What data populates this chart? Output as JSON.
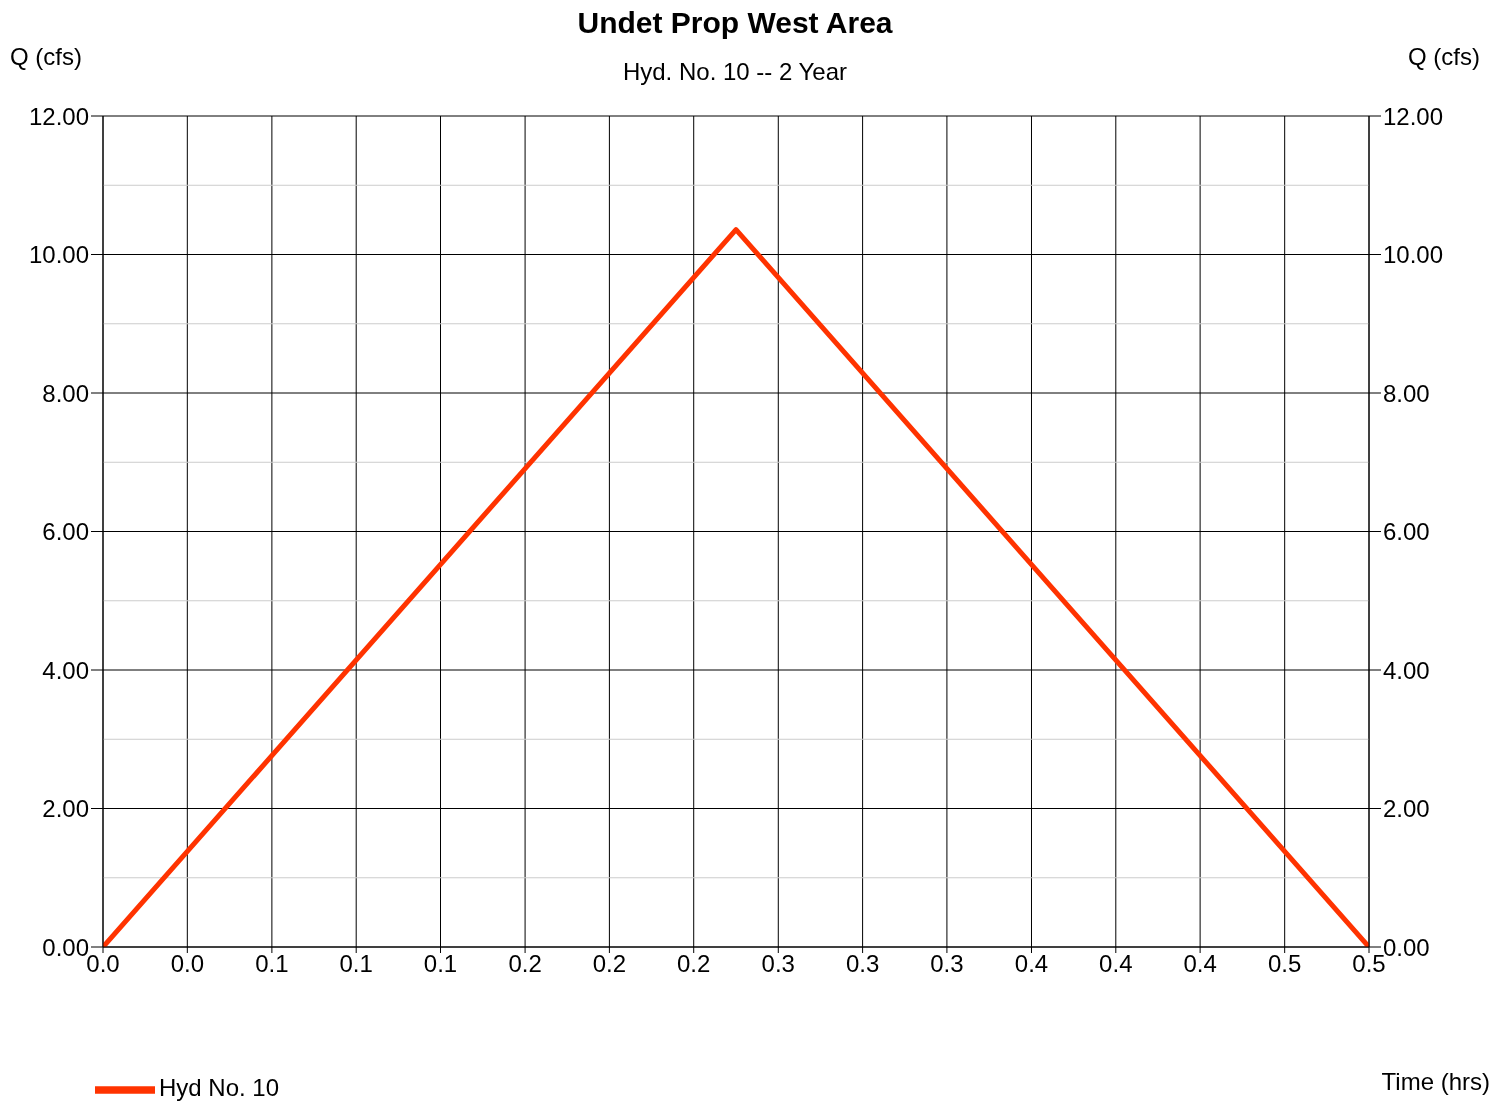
{
  "chart_data": {
    "type": "line",
    "title": "Undet Prop West Area",
    "subtitle": "Hyd. No. 10 -- 2 Year",
    "xlabel": "Time (hrs)",
    "ylabel": "Q (cfs)",
    "y2label": "Q (cfs)",
    "x": [
      0,
      0.25,
      0.5
    ],
    "series": [
      {
        "name": "Hyd No. 10",
        "color": "#ff3300",
        "values": [
          0,
          10.36,
          0
        ]
      }
    ],
    "xlim": [
      0,
      0.5
    ],
    "xticks": [
      {
        "value": 0,
        "label": "0.0"
      },
      {
        "value": 0.0333,
        "label": "0.0"
      },
      {
        "value": 0.0667,
        "label": "0.1"
      },
      {
        "value": 0.1,
        "label": "0.1"
      },
      {
        "value": 0.1333,
        "label": "0.1"
      },
      {
        "value": 0.1667,
        "label": "0.2"
      },
      {
        "value": 0.2,
        "label": "0.2"
      },
      {
        "value": 0.2333,
        "label": "0.2"
      },
      {
        "value": 0.2667,
        "label": "0.3"
      },
      {
        "value": 0.3,
        "label": "0.3"
      },
      {
        "value": 0.3333,
        "label": "0.3"
      },
      {
        "value": 0.3667,
        "label": "0.4"
      },
      {
        "value": 0.4,
        "label": "0.4"
      },
      {
        "value": 0.4333,
        "label": "0.4"
      },
      {
        "value": 0.4667,
        "label": "0.5"
      },
      {
        "value": 0.5,
        "label": "0.5"
      }
    ],
    "ylim": [
      0,
      12
    ],
    "yticks": [
      {
        "value": 0,
        "label": "0.00"
      },
      {
        "value": 1,
        "label": null
      },
      {
        "value": 2,
        "label": "2.00"
      },
      {
        "value": 3,
        "label": null
      },
      {
        "value": 4,
        "label": "4.00"
      },
      {
        "value": 5,
        "label": null
      },
      {
        "value": 6,
        "label": "6.00"
      },
      {
        "value": 7,
        "label": null
      },
      {
        "value": 8,
        "label": "8.00"
      },
      {
        "value": 9,
        "label": null
      },
      {
        "value": 10,
        "label": "10.00"
      },
      {
        "value": 11,
        "label": null
      },
      {
        "value": 12,
        "label": "12.00"
      }
    ],
    "y2lim": [
      0,
      12
    ],
    "y2ticks": [
      {
        "value": 0,
        "label": "0.00"
      },
      {
        "value": 2,
        "label": "2.00"
      },
      {
        "value": 4,
        "label": "4.00"
      },
      {
        "value": 6,
        "label": "6.00"
      },
      {
        "value": 8,
        "label": "8.00"
      },
      {
        "value": 10,
        "label": "10.00"
      },
      {
        "value": 12,
        "label": "12.00"
      }
    ],
    "grid": true,
    "legend": "bottom left",
    "marker": "none",
    "line_style": "solid"
  }
}
